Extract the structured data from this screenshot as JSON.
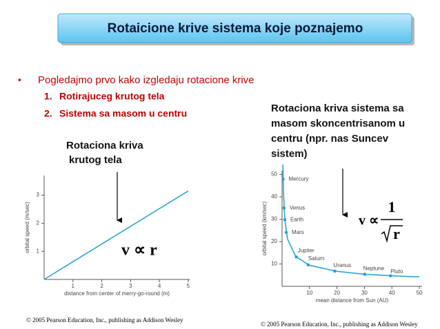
{
  "title": "Rotaicione krive sistema koje poznajemo",
  "bullet": "Pogledajmo prvo kako izgledaju rotacione krive",
  "items": [
    "Rotirajuceg krutog tela",
    "Sistema sa masom u centru"
  ],
  "item_numbers": [
    "1.",
    "2."
  ],
  "left_caption": [
    "Rotaciona kriva",
    "krutog tela"
  ],
  "right_caption": [
    "Rotaciona kriva sistema sa",
    "masom skoncentrisanom u",
    "centru (npr. nas Suncev",
    "sistem)"
  ],
  "left_formula": "v ∝ r",
  "right_formula": {
    "lhs": "v ∝",
    "numerator": "1",
    "denominator": "r"
  },
  "copyright_left": "© 2005 Pearson Education, Inc., publishing as Addison Wesley",
  "copyright_right": "© 2005 Pearson Education, Inc., publishing as Addison Wesley",
  "chart_data": [
    {
      "type": "line",
      "x_label": "distance from center of merry-go-round (m)",
      "y_label": "orbital speed (m/sec)",
      "x": [
        0,
        5
      ],
      "values": [
        0,
        3.15
      ],
      "color": "#2aa3cf",
      "xlim": [
        0,
        5.05
      ],
      "ylim": [
        0,
        3.7
      ],
      "xticks": [
        1,
        2,
        3,
        4,
        5
      ],
      "yticks": [
        1,
        2,
        3
      ]
    },
    {
      "type": "scatter",
      "x_label": "mean distance from Sun (AU)",
      "y_label": "orbital speed (km/sec)",
      "curve": {
        "x": [
          0.3,
          0.5,
          1,
          2,
          5,
          10,
          20,
          30,
          40,
          50
        ],
        "values": [
          54.4,
          42.1,
          29.8,
          21.1,
          13.3,
          9.4,
          6.7,
          5.4,
          4.7,
          4.2
        ]
      },
      "points": {
        "labels": [
          "Mercury",
          "Venus",
          "Earth",
          "Mars",
          "Jupiter",
          "Saturn",
          "Uranus",
          "Neptune",
          "Pluto"
        ],
        "x": [
          0.39,
          0.72,
          1,
          1.52,
          5.2,
          9.5,
          19.2,
          30.1,
          39.5
        ],
        "values": [
          47.9,
          35,
          29.8,
          24.1,
          13.1,
          9.6,
          6.8,
          5.4,
          4.7
        ]
      },
      "color": "#2aa3cf",
      "xlim": [
        0,
        51
      ],
      "ylim": [
        0,
        51.7
      ],
      "xticks": [
        10,
        20,
        30,
        40,
        50
      ],
      "yticks": [
        10,
        20,
        30,
        40,
        50
      ]
    }
  ]
}
